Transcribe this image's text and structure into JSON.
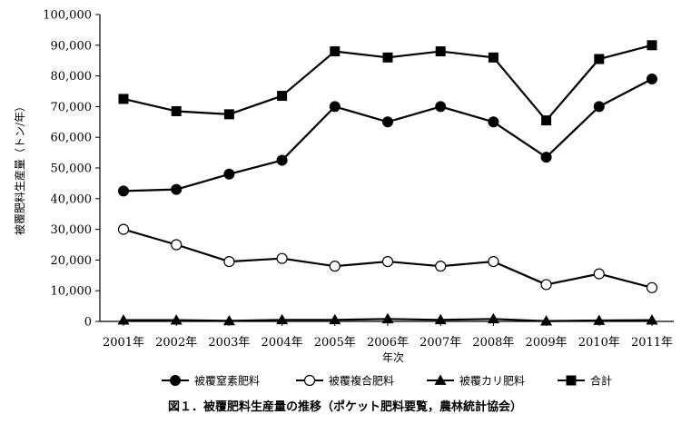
{
  "chart_data": {
    "type": "line",
    "title": "",
    "caption": "図１．被覆肥料生産量の推移（ポケット肥料要覧，農林統計協会）",
    "xlabel": "年次",
    "ylabel": "被覆肥料生産量（トン/年）",
    "ylim": [
      0,
      100000
    ],
    "yticks": [
      "0",
      "10,000",
      "20,000",
      "30,000",
      "40,000",
      "50,000",
      "60,000",
      "70,000",
      "80,000",
      "90,000",
      "100,000"
    ],
    "categories": [
      "2001年",
      "2002年",
      "2003年",
      "2004年",
      "2005年",
      "2006年",
      "2007年",
      "2008年",
      "2009年",
      "2010年",
      "2011年"
    ],
    "grid": false,
    "legend_position": "bottom",
    "series": [
      {
        "name": "被覆窒素肥料",
        "marker": "filled-circle",
        "color": "#000000",
        "values": [
          42500,
          43000,
          48000,
          52500,
          70000,
          65000,
          70000,
          65000,
          53500,
          70000,
          79000
        ]
      },
      {
        "name": "被覆複合肥料",
        "marker": "open-circle",
        "color": "#000000",
        "values": [
          30000,
          25000,
          19500,
          20500,
          18000,
          19500,
          18000,
          19500,
          12000,
          15500,
          11000
        ]
      },
      {
        "name": "被覆カリ肥料",
        "marker": "triangle",
        "color": "#000000",
        "values": [
          400,
          400,
          200,
          500,
          500,
          800,
          500,
          800,
          100,
          300,
          400
        ]
      },
      {
        "name": "合計",
        "marker": "square",
        "color": "#000000",
        "values": [
          72500,
          68500,
          67500,
          73500,
          88000,
          86000,
          88000,
          86000,
          65500,
          85500,
          90000
        ]
      }
    ]
  }
}
